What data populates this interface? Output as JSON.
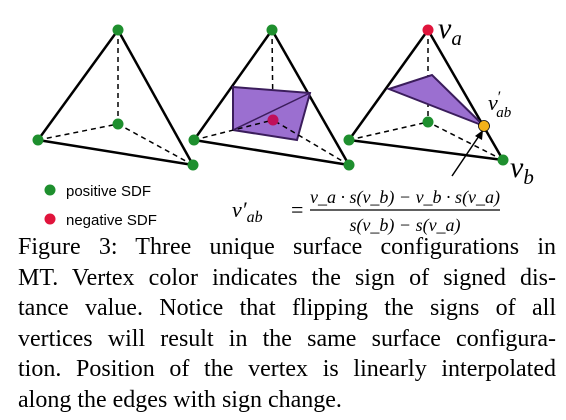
{
  "legend": {
    "positive_label": "positive SDF",
    "negative_label": "negative SDF",
    "positive_color": "#1e8f2e",
    "negative_color": "#e0143c"
  },
  "colors": {
    "surface_fill": "#9b6fd0",
    "surface_stroke": "#3b1d5c",
    "interp_vertex": "#f2b21a",
    "magenta_vertex": "#c0105a"
  },
  "labels": {
    "va": "v",
    "va_sub": "a",
    "vb": "v",
    "vb_sub": "b",
    "vab": "v",
    "vab_prime": "′",
    "vab_sub": "ab"
  },
  "formula": {
    "lhs": "v′",
    "lhs_sub": "ab",
    "equals": "=",
    "numerator": "v_a · s(v_b) − v_b · s(v_a)",
    "denominator": "s(v_b) − s(v_a)"
  },
  "caption": {
    "lines": [
      "Figure 3: Three unique surface configurations in",
      "MT. Vertex color indicates the sign of signed dis-",
      "tance value.  Notice that flipping the signs of all",
      "vertices will result in the same surface configura-",
      "tion. Position of the vertex is linearly interpolated",
      "along the edges with sign change."
    ]
  }
}
